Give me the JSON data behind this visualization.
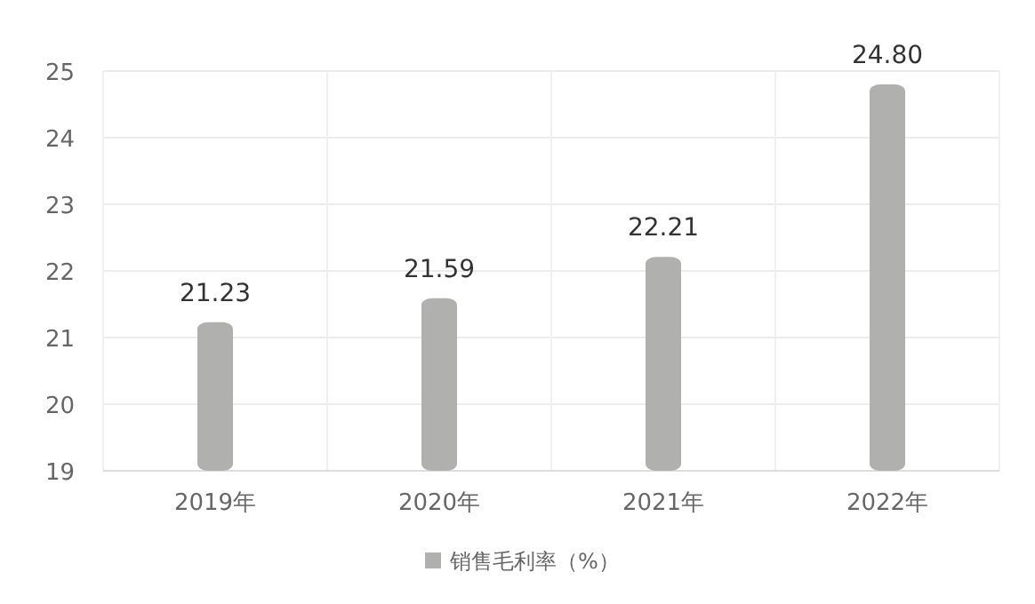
{
  "chart_data": {
    "type": "bar",
    "categories": [
      "2019年",
      "2020年",
      "2021年",
      "2022年"
    ],
    "series": [
      {
        "name": "销售毛利率（%）",
        "color": "#b0b0af",
        "values": [
          21.23,
          21.59,
          22.21,
          24.8
        ],
        "value_labels": [
          "21.23",
          "21.59",
          "22.21",
          "24.80"
        ]
      }
    ],
    "ylim": [
      19,
      25
    ],
    "yticks": [
      19,
      20,
      21,
      22,
      23,
      24,
      25
    ],
    "grid": true,
    "legend": "bottom"
  }
}
